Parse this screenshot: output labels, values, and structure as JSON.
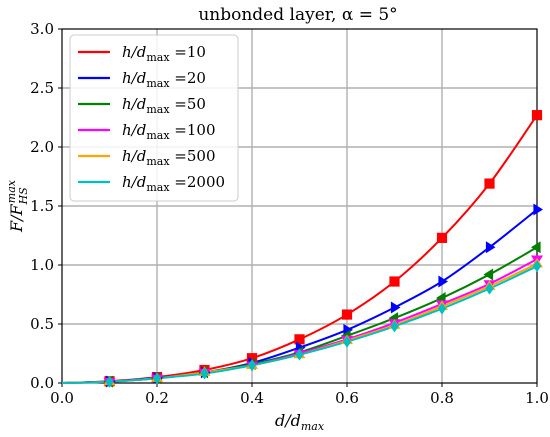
{
  "chart_data": {
    "type": "line",
    "title": "unbonded layer, α = 5°",
    "xlabel": "d/d_max",
    "ylabel": "F/F_HS^max",
    "xlim": [
      0.0,
      1.0
    ],
    "ylim": [
      0.0,
      3.0
    ],
    "xticks": [
      0.0,
      0.2,
      0.4,
      0.6,
      0.8,
      1.0
    ],
    "xtick_labels": [
      "0.0",
      "0.2",
      "0.4",
      "0.6",
      "0.8",
      "1.0"
    ],
    "yticks": [
      0.0,
      0.5,
      1.0,
      1.5,
      2.0,
      2.5,
      3.0
    ],
    "ytick_labels": [
      "0.0",
      "0.5",
      "1.0",
      "1.5",
      "2.0",
      "2.5",
      "3.0"
    ],
    "grid": true,
    "legend_position": "top-left",
    "legend_prefix": "h/d",
    "legend_sub": "max",
    "x": [
      0.1,
      0.2,
      0.3,
      0.4,
      0.5,
      0.6,
      0.7,
      0.8,
      0.9,
      1.0
    ],
    "series": [
      {
        "name": "10",
        "color": "#ff0000",
        "marker": "square",
        "values": [
          0.015,
          0.05,
          0.11,
          0.21,
          0.37,
          0.58,
          0.86,
          1.23,
          1.69,
          2.27
        ]
      },
      {
        "name": "20",
        "color": "#0000ff",
        "marker": "triangle-right",
        "values": [
          0.013,
          0.043,
          0.09,
          0.17,
          0.3,
          0.45,
          0.64,
          0.86,
          1.15,
          1.47
        ]
      },
      {
        "name": "50",
        "color": "#008000",
        "marker": "triangle-left",
        "values": [
          0.012,
          0.04,
          0.09,
          0.16,
          0.26,
          0.4,
          0.55,
          0.72,
          0.92,
          1.15
        ]
      },
      {
        "name": "100",
        "color": "#ff00ff",
        "marker": "triangle-down",
        "values": [
          0.012,
          0.04,
          0.09,
          0.15,
          0.25,
          0.37,
          0.51,
          0.67,
          0.84,
          1.05
        ]
      },
      {
        "name": "500",
        "color": "#ffa500",
        "marker": "triangle-up",
        "values": [
          0.011,
          0.04,
          0.09,
          0.15,
          0.24,
          0.36,
          0.49,
          0.65,
          0.82,
          1.01
        ]
      },
      {
        "name": "2000",
        "color": "#00bfbf",
        "marker": "diamond",
        "values": [
          0.011,
          0.04,
          0.08,
          0.15,
          0.24,
          0.35,
          0.48,
          0.63,
          0.8,
          0.99
        ]
      }
    ]
  }
}
